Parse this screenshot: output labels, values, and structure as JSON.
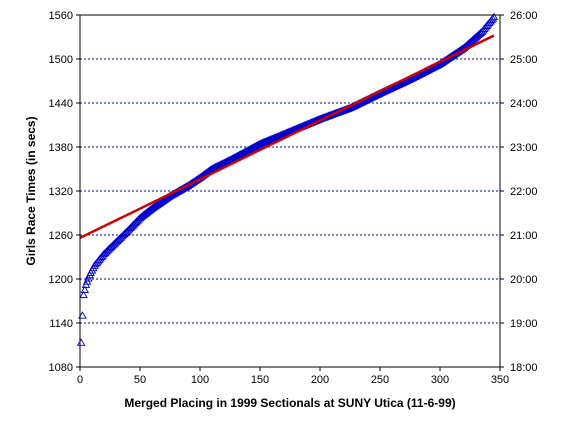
{
  "chart_data": {
    "type": "scatter",
    "xlabel": "Merged Placing in 1999 Sectionals at SUNY Utica (11-6-99)",
    "ylabel": "Girls Race Times (in secs)",
    "xlim": [
      0,
      350
    ],
    "ylim": [
      1080,
      1560
    ],
    "x_ticks": [
      "0",
      "50",
      "100",
      "150",
      "200",
      "250",
      "300",
      "350"
    ],
    "y_ticks": [
      "1080",
      "1140",
      "1200",
      "1260",
      "1320",
      "1380",
      "1440",
      "1500",
      "1560"
    ],
    "y2_ticks": [
      "18:00",
      "19:00",
      "20:00",
      "21:00",
      "22:00",
      "23:00",
      "24:00",
      "25:00",
      "26:00"
    ],
    "grid": "horizontal dashed",
    "series": [
      {
        "marker": "open-triangle",
        "color": "#0000cc",
        "count": 345,
        "curve_x": [
          1,
          2,
          3,
          5,
          8,
          12,
          20,
          30,
          40,
          50,
          60,
          75,
          90,
          100,
          110,
          125,
          150,
          175,
          200,
          225,
          250,
          275,
          300,
          320,
          335,
          345
        ],
        "curve_y": [
          1113,
          1150,
          1178,
          1192,
          1205,
          1218,
          1234,
          1250,
          1266,
          1283,
          1296,
          1313,
          1327,
          1338,
          1350,
          1362,
          1384,
          1401,
          1418,
          1433,
          1453,
          1472,
          1493,
          1515,
          1537,
          1557
        ]
      },
      {
        "type": "line",
        "color": "#cc0000",
        "x": [
          0,
          345
        ],
        "y": [
          1256,
          1532
        ]
      }
    ]
  }
}
